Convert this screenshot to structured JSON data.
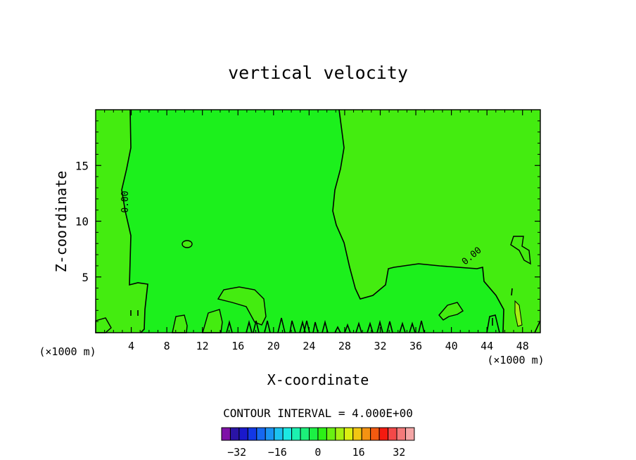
{
  "chart_data": {
    "type": "contour",
    "title": "vertical velocity",
    "xlabel": "X-coordinate",
    "ylabel": "Z-coordinate",
    "x_unit": "(×1000 m)",
    "y_unit": "(×1000 m)",
    "xlim": [
      0,
      50
    ],
    "ylim": [
      0,
      20
    ],
    "x_ticks": [
      4,
      8,
      12,
      16,
      20,
      24,
      28,
      32,
      36,
      40,
      44,
      48
    ],
    "y_ticks": [
      5,
      10,
      15
    ],
    "contour_interval_text": "CONTOUR INTERVAL = 4.000E+00",
    "contour_label": "0.00",
    "colorbar": {
      "tick_labels": [
        "−32",
        "−16",
        "0",
        "16",
        "32"
      ],
      "tick_values": [
        -32,
        -16,
        0,
        16,
        32
      ],
      "range": [
        -38,
        38
      ],
      "colors": [
        "#7f12a8",
        "#2a14a6",
        "#1a18cc",
        "#1238e6",
        "#1668f0",
        "#1a94f2",
        "#1cc2f0",
        "#1ce8e2",
        "#1cf0b0",
        "#1cf07a",
        "#1cf044",
        "#2cf016",
        "#6af012",
        "#a6f012",
        "#dcee12",
        "#f2c612",
        "#f49212",
        "#f45a10",
        "#f41a10",
        "#f44848",
        "#f47a7a",
        "#f4a6a6"
      ]
    },
    "fields": {
      "background_color": "#1cf01c",
      "positive_color": "#44ec10"
    }
  }
}
